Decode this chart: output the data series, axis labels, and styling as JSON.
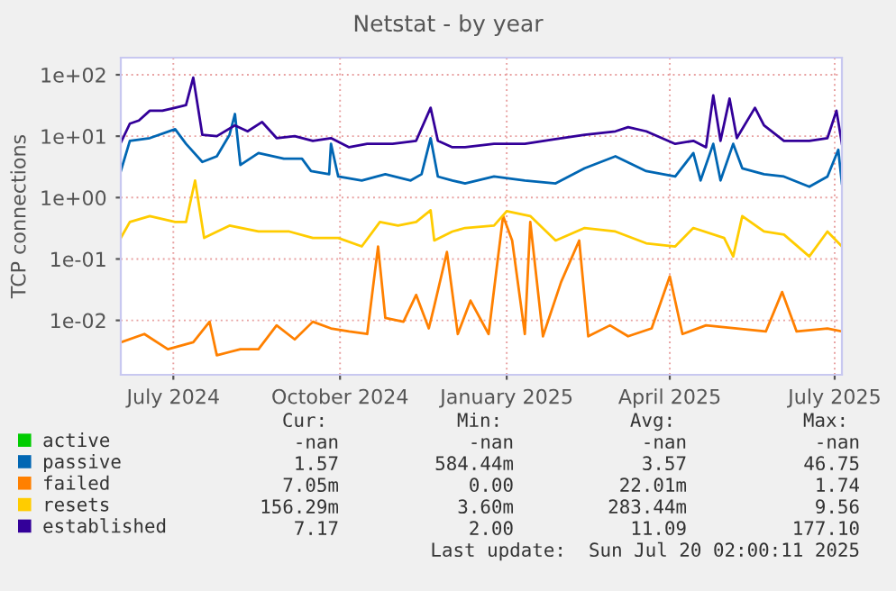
{
  "chart_data": {
    "type": "line",
    "title": "Netstat - by year",
    "ylabel": "TCP connections",
    "log": true,
    "grid": true,
    "legend": "bottom",
    "xlim": [
      "2024-06-17",
      "2025-07-20"
    ],
    "xticks": [
      {
        "value": "2024-07-16",
        "label": "July 2024"
      },
      {
        "value": "2024-10-16",
        "label": "October 2024"
      },
      {
        "value": "2025-01-16",
        "label": "January 2025"
      },
      {
        "value": "2025-04-16",
        "label": "April 2025"
      },
      {
        "value": "2025-07-16",
        "label": "July 2025"
      }
    ],
    "ylim": [
      0.0013,
      190
    ],
    "yticks": [
      {
        "value": 0.01,
        "label": "1e-02"
      },
      {
        "value": 0.1,
        "label": "1e-01"
      },
      {
        "value": 1,
        "label": "1e+00"
      },
      {
        "value": 10,
        "label": "1e+01"
      },
      {
        "value": 100,
        "label": "1e+02"
      }
    ],
    "series": [
      {
        "name": "active",
        "color": "#00cc00"
      },
      {
        "name": "passive",
        "color": "#0066b3",
        "x": [
          "2024-06-17",
          "2024-06-22",
          "2024-07-03",
          "2024-07-17",
          "2024-07-23",
          "2024-08-01",
          "2024-08-09",
          "2024-08-16",
          "2024-08-19",
          "2024-08-22",
          "2024-09-01",
          "2024-09-15",
          "2024-09-25",
          "2024-09-30",
          "2024-10-10",
          "2024-10-11",
          "2024-10-15",
          "2024-10-28",
          "2024-11-10",
          "2024-11-24",
          "2024-11-30",
          "2024-12-05",
          "2024-12-09",
          "2024-12-17",
          "2024-12-24",
          "2025-01-09",
          "2025-01-26",
          "2025-02-12",
          "2025-02-28",
          "2025-03-17",
          "2025-04-03",
          "2025-04-19",
          "2025-04-29",
          "2025-05-03",
          "2025-05-10",
          "2025-05-14",
          "2025-05-21",
          "2025-05-26",
          "2025-06-07",
          "2025-06-18",
          "2025-07-02",
          "2025-07-12",
          "2025-07-18",
          "2025-07-20"
        ],
        "values": [
          2.7,
          8.4,
          9.3,
          13,
          7.5,
          3.8,
          4.7,
          10.5,
          23,
          3.4,
          5.3,
          4.3,
          4.3,
          2.7,
          2.4,
          7.5,
          2.2,
          1.9,
          2.4,
          1.9,
          2.4,
          9.3,
          2.2,
          1.9,
          1.7,
          2.2,
          1.9,
          1.7,
          3.0,
          4.7,
          2.7,
          2.2,
          5.3,
          1.9,
          7.5,
          1.9,
          7.5,
          3.0,
          2.4,
          2.2,
          1.5,
          2.2,
          6,
          1.7
        ]
      },
      {
        "name": "failed",
        "color": "#ff8000",
        "x": [
          "2024-06-17",
          "2024-06-30",
          "2024-07-13",
          "2024-07-27",
          "2024-08-05",
          "2024-08-09",
          "2024-08-22",
          "2024-09-01",
          "2024-09-11",
          "2024-09-21",
          "2024-10-01",
          "2024-10-11",
          "2024-10-21",
          "2024-10-31",
          "2024-11-06",
          "2024-11-10",
          "2024-11-20",
          "2024-11-27",
          "2024-12-04",
          "2024-12-07",
          "2024-12-14",
          "2024-12-20",
          "2024-12-27",
          "2025-01-06",
          "2025-01-14",
          "2025-01-19",
          "2025-01-26",
          "2025-01-29",
          "2025-02-05",
          "2025-02-15",
          "2025-02-25",
          "2025-03-02",
          "2025-03-14",
          "2025-03-24",
          "2025-04-06",
          "2025-04-16",
          "2025-04-23",
          "2025-05-06",
          "2025-05-23",
          "2025-06-08",
          "2025-06-17",
          "2025-06-25",
          "2025-07-12",
          "2025-07-20"
        ],
        "values": [
          0.0044,
          0.006,
          0.0034,
          0.0044,
          0.0095,
          0.0027,
          0.0034,
          0.0034,
          0.0083,
          0.0049,
          0.0095,
          0.0074,
          0.0066,
          0.006,
          0.16,
          0.011,
          0.0095,
          0.026,
          0.0074,
          0.017,
          0.13,
          0.006,
          0.021,
          0.006,
          0.5,
          0.2,
          0.006,
          0.4,
          0.0055,
          0.042,
          0.2,
          0.0055,
          0.0083,
          0.0055,
          0.0074,
          0.052,
          0.006,
          0.0083,
          0.0074,
          0.0066,
          0.029,
          0.0066,
          0.0074,
          0.0066
        ]
      },
      {
        "name": "resets",
        "color": "#ffcc00",
        "x": [
          "2024-06-17",
          "2024-06-22",
          "2024-07-03",
          "2024-07-17",
          "2024-07-23",
          "2024-07-28",
          "2024-08-02",
          "2024-08-16",
          "2024-09-01",
          "2024-09-18",
          "2024-10-01",
          "2024-10-15",
          "2024-10-28",
          "2024-11-07",
          "2024-11-17",
          "2024-11-27",
          "2024-12-05",
          "2024-12-07",
          "2024-12-17",
          "2024-12-24",
          "2025-01-09",
          "2025-01-16",
          "2025-01-29",
          "2025-02-12",
          "2025-02-28",
          "2025-03-17",
          "2025-04-03",
          "2025-04-19",
          "2025-04-29",
          "2025-05-16",
          "2025-05-21",
          "2025-05-26",
          "2025-06-07",
          "2025-06-18",
          "2025-07-02",
          "2025-07-12",
          "2025-07-20"
        ],
        "values": [
          0.22,
          0.4,
          0.5,
          0.4,
          0.4,
          1.9,
          0.22,
          0.35,
          0.28,
          0.28,
          0.22,
          0.22,
          0.16,
          0.4,
          0.35,
          0.4,
          0.62,
          0.2,
          0.28,
          0.32,
          0.35,
          0.6,
          0.5,
          0.2,
          0.32,
          0.28,
          0.18,
          0.16,
          0.32,
          0.22,
          0.11,
          0.5,
          0.28,
          0.25,
          0.11,
          0.28,
          0.16
        ]
      },
      {
        "name": "established",
        "color": "#330099",
        "x": [
          "2024-06-17",
          "2024-06-22",
          "2024-06-27",
          "2024-07-03",
          "2024-07-10",
          "2024-07-17",
          "2024-07-23",
          "2024-07-27",
          "2024-08-01",
          "2024-08-09",
          "2024-08-19",
          "2024-08-26",
          "2024-09-03",
          "2024-09-11",
          "2024-09-21",
          "2024-10-01",
          "2024-10-11",
          "2024-10-21",
          "2024-10-31",
          "2024-11-14",
          "2024-11-27",
          "2024-12-05",
          "2024-12-09",
          "2024-12-17",
          "2024-12-24",
          "2025-01-09",
          "2025-01-26",
          "2025-02-12",
          "2025-02-28",
          "2025-03-17",
          "2025-03-24",
          "2025-04-03",
          "2025-04-19",
          "2025-04-29",
          "2025-05-06",
          "2025-05-10",
          "2025-05-14",
          "2025-05-19",
          "2025-05-23",
          "2025-06-02",
          "2025-06-07",
          "2025-06-18",
          "2025-07-02",
          "2025-07-12",
          "2025-07-17",
          "2025-07-20"
        ],
        "values": [
          7.8,
          16,
          18,
          26,
          26,
          29,
          32,
          90,
          10.5,
          10,
          15,
          12,
          17,
          9.3,
          10,
          8.4,
          9.3,
          6.6,
          7.5,
          7.5,
          8.4,
          29,
          8.4,
          6.6,
          6.6,
          7.5,
          7.5,
          9,
          10.5,
          12,
          14,
          12,
          7.5,
          8.4,
          6.6,
          46,
          8.4,
          41,
          9.3,
          29,
          15,
          8.4,
          8.4,
          9.3,
          26,
          7.5
        ]
      }
    ],
    "annotations": [
      "Cur:",
      "Min:",
      "Avg:",
      "Max:",
      "-nan",
      "-nan",
      "-nan",
      "-nan",
      "1.57",
      "584.44m",
      "3.57",
      "46.75",
      "7.05m",
      "0.00",
      "22.01m",
      "1.74",
      "156.29m",
      "3.60m",
      "283.44m",
      "9.56",
      "7.17",
      "2.00",
      "11.09",
      "177.10",
      "Last update:  Sun Jul 20 02:00:11 2025"
    ]
  }
}
